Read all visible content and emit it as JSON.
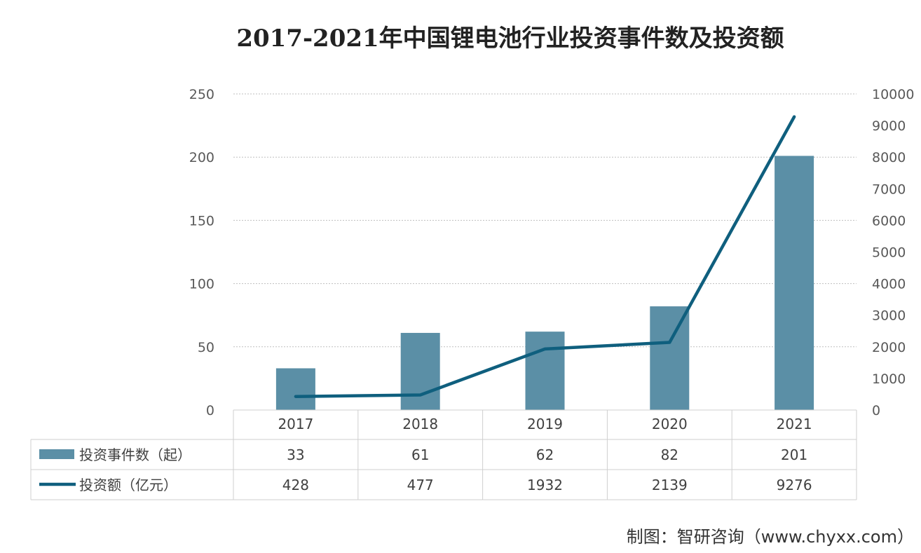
{
  "chart_data": {
    "type": "bar",
    "title": "2017-2021年中国锂电池行业投资事件数及投资额",
    "categories": [
      "2017",
      "2018",
      "2019",
      "2020",
      "2021"
    ],
    "series": [
      {
        "name": "投资事件数（起）",
        "type": "bar",
        "axis": "left",
        "values": [
          33,
          61,
          62,
          82,
          201
        ]
      },
      {
        "name": "投资额（亿元）",
        "type": "line",
        "axis": "right",
        "values": [
          428,
          477,
          1932,
          2139,
          9276
        ]
      }
    ],
    "y_left": {
      "range": [
        0,
        250
      ],
      "ticks": [
        "0",
        "50",
        "100",
        "150",
        "200",
        "250"
      ]
    },
    "y_right": {
      "range": [
        0,
        10000
      ],
      "ticks": [
        "0",
        "1000",
        "2000",
        "3000",
        "4000",
        "5000",
        "6000",
        "7000",
        "8000",
        "9000",
        "10000"
      ]
    },
    "grid": true,
    "legend": "data-table-below",
    "colors": {
      "bar": "#5b8fa6",
      "line": "#0f5f7e"
    }
  },
  "source_note": "制图：智研咨询（www.chyxx.com）"
}
